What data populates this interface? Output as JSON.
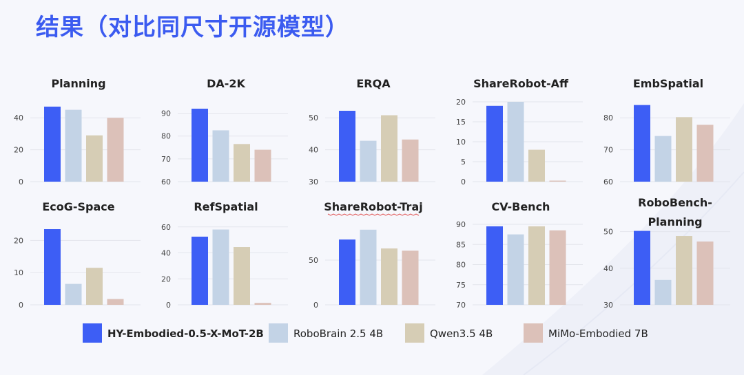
{
  "page": {
    "title": "结果（对比同尺寸开源模型）"
  },
  "colors": {
    "title": "#3b5bf0",
    "series": [
      "#3d5ef5",
      "#c3d3e6",
      "#d6cdb5",
      "#dcc1b9"
    ]
  },
  "legend": [
    {
      "label": "HY-Embodied-0.5-X-MoT-2B",
      "color": "#3d5ef5",
      "bold": true
    },
    {
      "label": "RoboBrain 2.5 4B",
      "color": "#c3d3e6"
    },
    {
      "label": "Qwen3.5 4B",
      "color": "#d6cdb5"
    },
    {
      "label": "MiMo-Embodied 7B",
      "color": "#dcc1b9"
    }
  ],
  "chart_data": [
    {
      "type": "bar",
      "title": "Planning",
      "ylim": [
        0,
        50
      ],
      "yticks": [
        0,
        20,
        40
      ],
      "series": [
        {
          "name": "HY-Embodied-0.5-X-MoT-2B",
          "values": [
            47
          ]
        },
        {
          "name": "RoboBrain 2.5 4B",
          "values": [
            45
          ]
        },
        {
          "name": "Qwen3.5 4B",
          "values": [
            29
          ]
        },
        {
          "name": "MiMo-Embodied 7B",
          "values": [
            40
          ]
        }
      ]
    },
    {
      "type": "bar",
      "title": "DA-2K",
      "ylim": [
        60,
        95
      ],
      "yticks": [
        60,
        70,
        80,
        90
      ],
      "series": [
        {
          "name": "HY-Embodied-0.5-X-MoT-2B",
          "values": [
            92
          ]
        },
        {
          "name": "RoboBrain 2.5 4B",
          "values": [
            82.5
          ]
        },
        {
          "name": "Qwen3.5 4B",
          "values": [
            76.5
          ]
        },
        {
          "name": "MiMo-Embodied 7B",
          "values": [
            74
          ]
        }
      ]
    },
    {
      "type": "bar",
      "title": "ERQA",
      "ylim": [
        30,
        55
      ],
      "yticks": [
        30,
        40,
        50
      ],
      "series": [
        {
          "name": "HY-Embodied-0.5-X-MoT-2B",
          "values": [
            52.2
          ]
        },
        {
          "name": "RoboBrain 2.5 4B",
          "values": [
            42.8
          ]
        },
        {
          "name": "Qwen3.5 4B",
          "values": [
            50.8
          ]
        },
        {
          "name": "MiMo-Embodied 7B",
          "values": [
            43.2
          ]
        }
      ]
    },
    {
      "type": "bar",
      "title": "ShareRobot-Aff",
      "ylim": [
        0,
        20
      ],
      "yticks": [
        0,
        5,
        10,
        15,
        20
      ],
      "series": [
        {
          "name": "HY-Embodied-0.5-X-MoT-2B",
          "values": [
            19
          ]
        },
        {
          "name": "RoboBrain 2.5 4B",
          "values": [
            20
          ]
        },
        {
          "name": "Qwen3.5 4B",
          "values": [
            8
          ]
        },
        {
          "name": "MiMo-Embodied 7B",
          "values": [
            0.2
          ]
        }
      ]
    },
    {
      "type": "bar",
      "title": "EmbSpatial",
      "ylim": [
        60,
        85
      ],
      "yticks": [
        60,
        70,
        80
      ],
      "series": [
        {
          "name": "HY-Embodied-0.5-X-MoT-2B",
          "values": [
            84
          ]
        },
        {
          "name": "RoboBrain 2.5 4B",
          "values": [
            74.3
          ]
        },
        {
          "name": "Qwen3.5 4B",
          "values": [
            80.2
          ]
        },
        {
          "name": "MiMo-Embodied 7B",
          "values": [
            77.8
          ]
        }
      ]
    },
    {
      "type": "bar",
      "title": "EcoG-Space",
      "ylim": [
        0,
        25
      ],
      "yticks": [
        0,
        10,
        20
      ],
      "series": [
        {
          "name": "HY-Embodied-0.5-X-MoT-2B",
          "values": [
            23.5
          ]
        },
        {
          "name": "RoboBrain 2.5 4B",
          "values": [
            6.5
          ]
        },
        {
          "name": "Qwen3.5 4B",
          "values": [
            11.5
          ]
        },
        {
          "name": "MiMo-Embodied 7B",
          "values": [
            1.8
          ]
        }
      ]
    },
    {
      "type": "bar",
      "title": "RefSpatial",
      "ylim": [
        0,
        62
      ],
      "yticks": [
        0,
        20,
        40,
        60
      ],
      "series": [
        {
          "name": "HY-Embodied-0.5-X-MoT-2B",
          "values": [
            52.5
          ]
        },
        {
          "name": "RoboBrain 2.5 4B",
          "values": [
            58
          ]
        },
        {
          "name": "Qwen3.5 4B",
          "values": [
            44.5
          ]
        },
        {
          "name": "MiMo-Embodied 7B",
          "values": [
            1.5
          ]
        }
      ]
    },
    {
      "type": "bar",
      "title": "ShareRobot-Traj",
      "ylim": [
        0,
        90
      ],
      "yticks": [
        0,
        50
      ],
      "series": [
        {
          "name": "HY-Embodied-0.5-X-MoT-2B",
          "values": [
            73
          ]
        },
        {
          "name": "RoboBrain 2.5 4B",
          "values": [
            84
          ]
        },
        {
          "name": "Qwen3.5 4B",
          "values": [
            63
          ]
        },
        {
          "name": "MiMo-Embodied 7B",
          "values": [
            60.5
          ]
        }
      ]
    },
    {
      "type": "bar",
      "title": "CV-Bench",
      "ylim": [
        70,
        90
      ],
      "yticks": [
        70,
        75,
        80,
        85,
        90
      ],
      "series": [
        {
          "name": "HY-Embodied-0.5-X-MoT-2B",
          "values": [
            89.5
          ]
        },
        {
          "name": "RoboBrain 2.5 4B",
          "values": [
            87.5
          ]
        },
        {
          "name": "Qwen3.5 4B",
          "values": [
            89.5
          ]
        },
        {
          "name": "MiMo-Embodied 7B",
          "values": [
            88.5
          ]
        }
      ]
    },
    {
      "type": "bar",
      "title": "RoboBench-Planning",
      "ylim": [
        30,
        52
      ],
      "yticks": [
        30,
        40,
        50
      ],
      "series": [
        {
          "name": "HY-Embodied-0.5-X-MoT-2B",
          "values": [
            50.2
          ]
        },
        {
          "name": "RoboBrain 2.5 4B",
          "values": [
            36.8
          ]
        },
        {
          "name": "Qwen3.5 4B",
          "values": [
            48.8
          ]
        },
        {
          "name": "MiMo-Embodied 7B",
          "values": [
            47.3
          ]
        }
      ]
    }
  ]
}
